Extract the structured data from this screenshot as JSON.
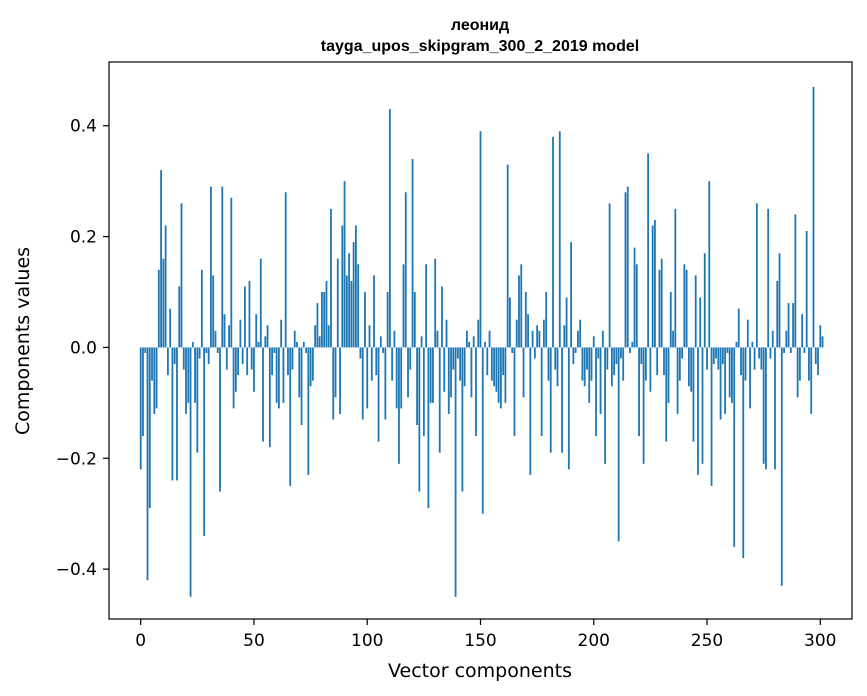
{
  "chart_data": {
    "type": "bar",
    "title": "леонид",
    "subtitle": "tayga_upos_skipgram_300_2_2019 model",
    "xlabel": "Vector components",
    "ylabel": "Components values",
    "xlim": [
      -14,
      314
    ],
    "ylim": [
      -0.49,
      0.515
    ],
    "xticks": [
      0,
      50,
      100,
      150,
      200,
      250,
      300
    ],
    "yticks": [
      -0.4,
      -0.2,
      0.0,
      0.2,
      0.4
    ],
    "ytick_labels": [
      "−0.4",
      "−0.2",
      "0.0",
      "0.2",
      "0.4"
    ],
    "color": "#1f77b4",
    "values": [
      -0.22,
      -0.16,
      -0.01,
      -0.42,
      -0.29,
      -0.06,
      -0.12,
      -0.11,
      0.14,
      0.32,
      0.16,
      0.22,
      -0.05,
      0.07,
      -0.24,
      -0.03,
      -0.24,
      0.11,
      0.26,
      -0.04,
      -0.12,
      -0.1,
      -0.45,
      0.01,
      -0.1,
      -0.19,
      -0.02,
      0.14,
      -0.34,
      -0.01,
      -0.03,
      0.29,
      0.13,
      0.03,
      -0.01,
      -0.26,
      0.29,
      0.06,
      -0.04,
      0.04,
      0.27,
      -0.11,
      -0.08,
      -0.05,
      0.05,
      -0.03,
      0.11,
      -0.05,
      0.12,
      -0.04,
      -0.08,
      0.06,
      0.01,
      0.16,
      -0.17,
      0.02,
      0.04,
      -0.18,
      -0.05,
      -0.01,
      -0.1,
      -0.11,
      0.05,
      -0.1,
      0.28,
      -0.05,
      -0.25,
      -0.04,
      0.03,
      0.01,
      -0.09,
      -0.14,
      0.01,
      -0.01,
      -0.23,
      -0.07,
      -0.06,
      0.04,
      0.08,
      0.02,
      0.1,
      0.1,
      0.12,
      0.04,
      0.25,
      -0.13,
      -0.09,
      0.16,
      -0.12,
      0.22,
      0.3,
      0.13,
      0.17,
      0.12,
      0.19,
      0.22,
      0.15,
      -0.02,
      -0.13,
      0.1,
      -0.11,
      0.04,
      -0.06,
      0.13,
      -0.05,
      -0.17,
      0.02,
      -0.01,
      -0.13,
      0.1,
      0.43,
      -0.06,
      0.03,
      -0.11,
      -0.21,
      -0.11,
      0.15,
      0.28,
      -0.09,
      -0.04,
      0.34,
      0.1,
      -0.14,
      -0.26,
      0.02,
      -0.16,
      0.15,
      -0.29,
      -0.1,
      -0.1,
      0.16,
      0.03,
      -0.19,
      0.11,
      -0.08,
      0.05,
      -0.12,
      -0.09,
      -0.04,
      -0.45,
      -0.02,
      -0.06,
      -0.26,
      -0.07,
      0.03,
      0.01,
      -0.09,
      0.02,
      -0.16,
      0.05,
      0.39,
      -0.3,
      0.01,
      -0.05,
      0.03,
      -0.06,
      -0.07,
      -0.08,
      -0.1,
      -0.11,
      -0.05,
      -0.1,
      0.33,
      0.09,
      -0.01,
      -0.16,
      0.05,
      0.13,
      0.15,
      -0.09,
      0.1,
      0.06,
      -0.23,
      0.03,
      -0.02,
      0.04,
      0.03,
      -0.16,
      0.05,
      0.1,
      -0.06,
      -0.19,
      0.38,
      -0.04,
      -0.07,
      0.39,
      -0.19,
      0.04,
      0.09,
      -0.22,
      0.19,
      -0.03,
      -0.01,
      0.03,
      0.05,
      -0.06,
      -0.07,
      -0.04,
      -0.1,
      -0.06,
      0.02,
      -0.16,
      -0.02,
      -0.12,
      0.03,
      -0.21,
      -0.04,
      0.26,
      -0.07,
      -0.05,
      -0.03,
      -0.35,
      -0.02,
      -0.06,
      0.28,
      0.29,
      -0.01,
      0.01,
      0.18,
      0.15,
      -0.16,
      -0.03,
      -0.21,
      -0.06,
      0.35,
      -0.08,
      0.22,
      0.23,
      -0.05,
      0.14,
      0.16,
      -0.05,
      -0.17,
      -0.1,
      0.1,
      0.03,
      0.25,
      -0.12,
      -0.06,
      -0.02,
      0.15,
      0.14,
      -0.07,
      -0.08,
      -0.17,
      0.13,
      -0.23,
      0.09,
      -0.21,
      0.17,
      -0.04,
      0.3,
      -0.25,
      -0.03,
      -0.02,
      -0.04,
      -0.13,
      -0.03,
      -0.12,
      -0.01,
      -0.09,
      -0.1,
      -0.36,
      0.01,
      0.07,
      -0.05,
      -0.38,
      -0.06,
      0.05,
      -0.11,
      0.01,
      -0.04,
      0.26,
      -0.02,
      -0.04,
      -0.21,
      -0.22,
      0.25,
      -0.02,
      0.03,
      -0.22,
      0.12,
      0.17,
      -0.43,
      -0.01,
      0.03,
      0.08,
      -0.01,
      0.08,
      0.24,
      -0.09,
      -0.06,
      0.06,
      -0.01,
      0.21,
      -0.06,
      -0.12,
      0.47,
      -0.03,
      -0.05,
      0.04,
      0.02
    ]
  }
}
